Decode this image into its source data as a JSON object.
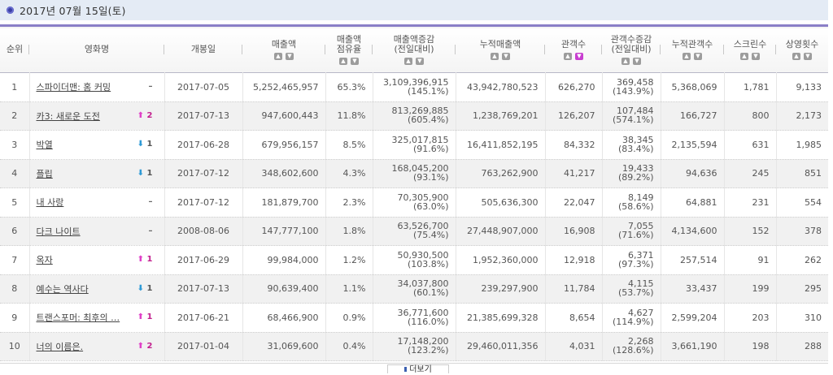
{
  "header": {
    "date_label": "2017년 07월 15일(토)"
  },
  "columns": [
    {
      "key": "rank",
      "label": "순위",
      "sortable": false
    },
    {
      "key": "title",
      "label": "영화명",
      "sortable": false
    },
    {
      "key": "release",
      "label": "개봉일",
      "sortable": false
    },
    {
      "key": "sales",
      "label": "매출액",
      "sortable": true
    },
    {
      "key": "share",
      "label": "매출액 점유율",
      "line1": "매출액",
      "line2": "점유율",
      "sortable": true
    },
    {
      "key": "sales_delta",
      "label": "매출액증감 (전일대비)",
      "line1": "매출액증감",
      "line2": "(전일대비)",
      "sortable": true
    },
    {
      "key": "cum_sales",
      "label": "누적매출액",
      "sortable": true
    },
    {
      "key": "audience",
      "label": "관객수",
      "sortable": true,
      "active_sort": "desc"
    },
    {
      "key": "aud_delta",
      "label": "관객수증감 (전일대비)",
      "line1": "관객수증감",
      "line2": "(전일대비)",
      "sortable": true
    },
    {
      "key": "cum_aud",
      "label": "누적관객수",
      "sortable": true
    },
    {
      "key": "screens",
      "label": "스크린수",
      "sortable": true
    },
    {
      "key": "shows",
      "label": "상영횟수",
      "sortable": true
    }
  ],
  "sort_icons": {
    "up": "sort-up-icon",
    "down": "sort-down-icon"
  },
  "colors": {
    "accent": "#8a7fc7",
    "date_bar": "#e4ebf5",
    "rank_up": "#c2208e",
    "rank_down_arrow": "#2e9ad6",
    "sort_active": "#c83fd0"
  },
  "rows": [
    {
      "rank": "1",
      "title": "스파이더맨: 홈 커밍",
      "change_type": "same",
      "change": "–",
      "release": "2017-07-05",
      "sales": "5,252,465,957",
      "share": "65.3%",
      "sales_delta": "3,109,396,915",
      "sales_delta_pct": "(145.1%)",
      "cum_sales": "43,942,780,523",
      "audience": "626,270",
      "aud_delta": "369,458",
      "aud_delta_pct": "(143.9%)",
      "cum_aud": "5,368,069",
      "screens": "1,781",
      "shows": "9,133"
    },
    {
      "rank": "2",
      "title": "카3: 새로운 도전",
      "change_type": "up",
      "change": "2",
      "release": "2017-07-13",
      "sales": "947,600,443",
      "share": "11.8%",
      "sales_delta": "813,269,885",
      "sales_delta_pct": "(605.4%)",
      "cum_sales": "1,238,769,201",
      "audience": "126,207",
      "aud_delta": "107,484",
      "aud_delta_pct": "(574.1%)",
      "cum_aud": "166,727",
      "screens": "800",
      "shows": "2,173"
    },
    {
      "rank": "3",
      "title": "박열",
      "change_type": "down",
      "change": "1",
      "release": "2017-06-28",
      "sales": "679,956,157",
      "share": "8.5%",
      "sales_delta": "325,017,815",
      "sales_delta_pct": "(91.6%)",
      "cum_sales": "16,411,852,195",
      "audience": "84,332",
      "aud_delta": "38,345",
      "aud_delta_pct": "(83.4%)",
      "cum_aud": "2,135,594",
      "screens": "631",
      "shows": "1,985"
    },
    {
      "rank": "4",
      "title": "플립",
      "change_type": "down",
      "change": "1",
      "release": "2017-07-12",
      "sales": "348,602,600",
      "share": "4.3%",
      "sales_delta": "168,045,200",
      "sales_delta_pct": "(93.1%)",
      "cum_sales": "763,262,900",
      "audience": "41,217",
      "aud_delta": "19,433",
      "aud_delta_pct": "(89.2%)",
      "cum_aud": "94,636",
      "screens": "245",
      "shows": "851"
    },
    {
      "rank": "5",
      "title": "내 사랑",
      "change_type": "same",
      "change": "–",
      "release": "2017-07-12",
      "sales": "181,879,700",
      "share": "2.3%",
      "sales_delta": "70,305,900",
      "sales_delta_pct": "(63.0%)",
      "cum_sales": "505,636,300",
      "audience": "22,047",
      "aud_delta": "8,149",
      "aud_delta_pct": "(58.6%)",
      "cum_aud": "64,881",
      "screens": "231",
      "shows": "554"
    },
    {
      "rank": "6",
      "title": "다크 나이트",
      "change_type": "same",
      "change": "–",
      "release": "2008-08-06",
      "sales": "147,777,100",
      "share": "1.8%",
      "sales_delta": "63,526,700",
      "sales_delta_pct": "(75.4%)",
      "cum_sales": "27,448,907,000",
      "audience": "16,908",
      "aud_delta": "7,055",
      "aud_delta_pct": "(71.6%)",
      "cum_aud": "4,134,600",
      "screens": "152",
      "shows": "378"
    },
    {
      "rank": "7",
      "title": "옥자",
      "change_type": "up",
      "change": "1",
      "release": "2017-06-29",
      "sales": "99,984,000",
      "share": "1.2%",
      "sales_delta": "50,930,500",
      "sales_delta_pct": "(103.8%)",
      "cum_sales": "1,952,360,000",
      "audience": "12,918",
      "aud_delta": "6,371",
      "aud_delta_pct": "(97.3%)",
      "cum_aud": "257,514",
      "screens": "91",
      "shows": "262"
    },
    {
      "rank": "8",
      "title": "예수는 역사다",
      "change_type": "down",
      "change": "1",
      "release": "2017-07-13",
      "sales": "90,639,400",
      "share": "1.1%",
      "sales_delta": "34,037,800",
      "sales_delta_pct": "(60.1%)",
      "cum_sales": "239,297,900",
      "audience": "11,784",
      "aud_delta": "4,115",
      "aud_delta_pct": "(53.7%)",
      "cum_aud": "33,437",
      "screens": "199",
      "shows": "295"
    },
    {
      "rank": "9",
      "title": "트랜스포머: 최후의 …",
      "change_type": "up",
      "change": "1",
      "release": "2017-06-21",
      "sales": "68,466,900",
      "share": "0.9%",
      "sales_delta": "36,771,600",
      "sales_delta_pct": "(116.0%)",
      "cum_sales": "21,385,699,328",
      "audience": "8,654",
      "aud_delta": "4,627",
      "aud_delta_pct": "(114.9%)",
      "cum_aud": "2,599,204",
      "screens": "203",
      "shows": "310"
    },
    {
      "rank": "10",
      "title": "너의 이름은.",
      "change_type": "up",
      "change": "2",
      "release": "2017-01-04",
      "sales": "31,069,600",
      "share": "0.4%",
      "sales_delta": "17,148,200",
      "sales_delta_pct": "(123.2%)",
      "cum_sales": "29,460,011,356",
      "audience": "4,031",
      "aud_delta": "2,268",
      "aud_delta_pct": "(128.6%)",
      "cum_aud": "3,661,190",
      "screens": "198",
      "shows": "288"
    }
  ],
  "footer": {
    "more_tab_label": "더보기"
  }
}
